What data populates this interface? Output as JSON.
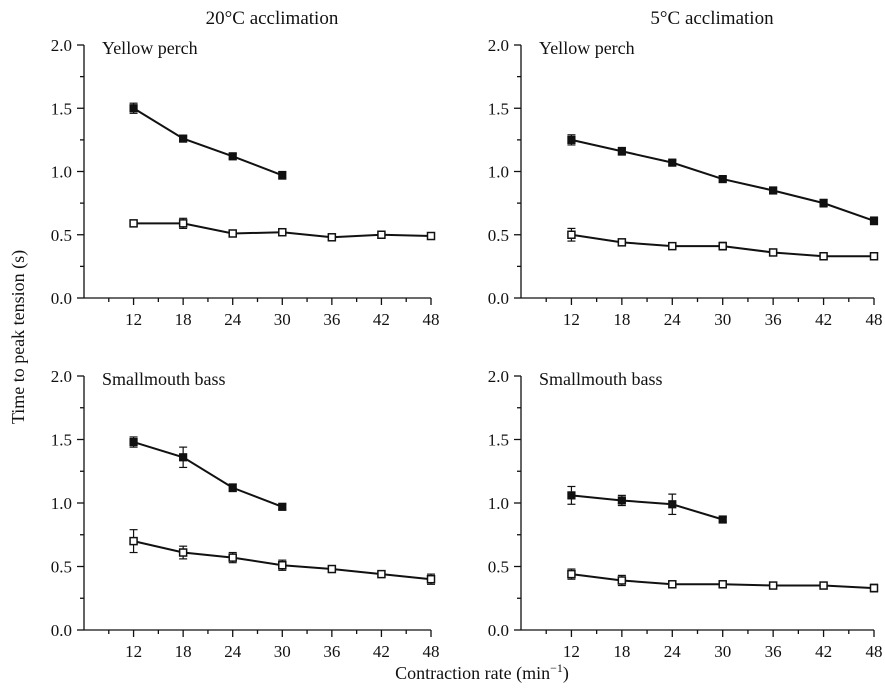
{
  "figure": {
    "y_axis_title": "Time to peak tension (s)",
    "x_axis_title_main": "Contraction rate (min",
    "x_axis_title_sup": "−1",
    "x_axis_title_close": ")",
    "column_headers": [
      "20°C acclimation",
      "5°C acclimation"
    ]
  },
  "chart_data": [
    {
      "type": "line",
      "column": "20°C acclimation",
      "species": "Yellow perch",
      "x_ticks": [
        12,
        18,
        24,
        30,
        36,
        42,
        48
      ],
      "y_ticks": [
        "0.0",
        "0.5",
        "1.0",
        "1.5",
        "2.0"
      ],
      "xlim": [
        6,
        48
      ],
      "ylim": [
        0,
        2.0
      ],
      "series": [
        {
          "marker": "filled",
          "x": [
            12,
            18,
            24,
            30
          ],
          "y": [
            1.5,
            1.26,
            1.12,
            0.97
          ],
          "err": [
            0.04,
            0.02,
            0.02,
            0.03
          ]
        },
        {
          "marker": "open",
          "x": [
            12,
            18,
            24,
            30,
            36,
            42,
            48
          ],
          "y": [
            0.59,
            0.59,
            0.51,
            0.52,
            0.48,
            0.5,
            0.49
          ],
          "err": [
            0.02,
            0.04,
            0.02,
            0.02,
            0.02,
            0.02,
            0.02
          ]
        }
      ]
    },
    {
      "type": "line",
      "column": "5°C acclimation",
      "species": "Yellow perch",
      "x_ticks": [
        12,
        18,
        24,
        30,
        36,
        42,
        48
      ],
      "y_ticks": [
        "0.0",
        "0.5",
        "1.0",
        "1.5",
        "2.0"
      ],
      "xlim": [
        6,
        48
      ],
      "ylim": [
        0,
        2.0
      ],
      "series": [
        {
          "marker": "filled",
          "x": [
            12,
            18,
            24,
            30,
            36,
            42,
            48
          ],
          "y": [
            1.25,
            1.16,
            1.07,
            0.94,
            0.85,
            0.75,
            0.61
          ],
          "err": [
            0.04,
            0.03,
            0.02,
            0.02,
            0.02,
            0.03,
            0.03
          ]
        },
        {
          "marker": "open",
          "x": [
            12,
            18,
            24,
            30,
            36,
            42,
            48
          ],
          "y": [
            0.5,
            0.44,
            0.41,
            0.41,
            0.36,
            0.33,
            0.33
          ],
          "err": [
            0.05,
            0.02,
            0.02,
            0.03,
            0.02,
            0.02,
            0.02
          ]
        }
      ]
    },
    {
      "type": "line",
      "column": "20°C acclimation",
      "species": "Smallmouth bass",
      "x_ticks": [
        12,
        18,
        24,
        30,
        36,
        42,
        48
      ],
      "y_ticks": [
        "0.0",
        "0.5",
        "1.0",
        "1.5",
        "2.0"
      ],
      "xlim": [
        6,
        48
      ],
      "ylim": [
        0,
        2.0
      ],
      "series": [
        {
          "marker": "filled",
          "x": [
            12,
            18,
            24,
            30
          ],
          "y": [
            1.48,
            1.36,
            1.12,
            0.97
          ],
          "err": [
            0.04,
            0.08,
            0.03,
            0.02
          ]
        },
        {
          "marker": "open",
          "x": [
            12,
            18,
            24,
            30,
            36,
            42,
            48
          ],
          "y": [
            0.7,
            0.61,
            0.57,
            0.51,
            0.48,
            0.44,
            0.4
          ],
          "err": [
            0.09,
            0.05,
            0.04,
            0.04,
            0.02,
            0.02,
            0.04
          ]
        }
      ]
    },
    {
      "type": "line",
      "column": "5°C acclimation",
      "species": "Smallmouth bass",
      "x_ticks": [
        12,
        18,
        24,
        30,
        36,
        42,
        48
      ],
      "y_ticks": [
        "0.0",
        "0.5",
        "1.0",
        "1.5",
        "2.0"
      ],
      "xlim": [
        6,
        48
      ],
      "ylim": [
        0,
        2.0
      ],
      "series": [
        {
          "marker": "filled",
          "x": [
            12,
            18,
            24,
            30
          ],
          "y": [
            1.06,
            1.02,
            0.99,
            0.87
          ],
          "err": [
            0.07,
            0.04,
            0.08,
            0.02
          ]
        },
        {
          "marker": "open",
          "x": [
            12,
            18,
            24,
            30,
            36,
            42,
            48
          ],
          "y": [
            0.44,
            0.39,
            0.36,
            0.36,
            0.35,
            0.35,
            0.33
          ],
          "err": [
            0.04,
            0.04,
            0.02,
            0.02,
            0.02,
            0.02,
            0.03
          ]
        }
      ]
    }
  ]
}
